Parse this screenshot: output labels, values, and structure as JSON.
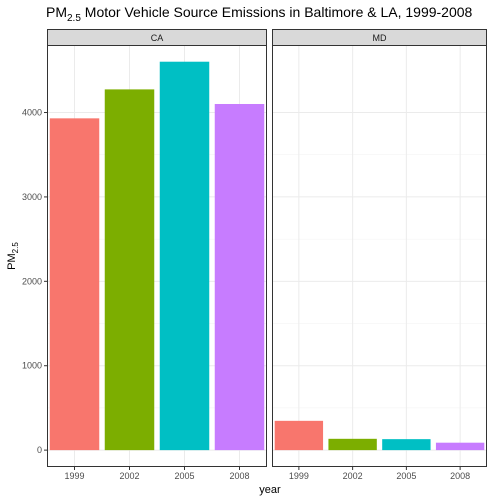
{
  "chart_data": {
    "type": "bar",
    "title": {
      "prefix": "PM",
      "subscript": "2.5",
      "suffix": " Motor Vehicle Source Emissions in Baltimore & LA, 1999-2008"
    },
    "xlabel": "year",
    "ylabel": {
      "base": "PM",
      "subscript": "2.5"
    },
    "categories": [
      "1999",
      "2002",
      "2005",
      "2008"
    ],
    "ylim": [
      -200,
      4800
    ],
    "yticks": [
      0,
      1000,
      2000,
      3000,
      4000
    ],
    "yticks_labels": [
      "0",
      "1000",
      "2000",
      "3000",
      "4000"
    ],
    "grid": true,
    "legend": "none",
    "facets": [
      {
        "name": "CA",
        "values": [
          3931,
          4274,
          4602,
          4101
        ]
      },
      {
        "name": "MD",
        "values": [
          347,
          134,
          130,
          88
        ]
      }
    ],
    "colors": [
      "#F8766D",
      "#7CAE00",
      "#00BFC4",
      "#C77CFF"
    ]
  }
}
